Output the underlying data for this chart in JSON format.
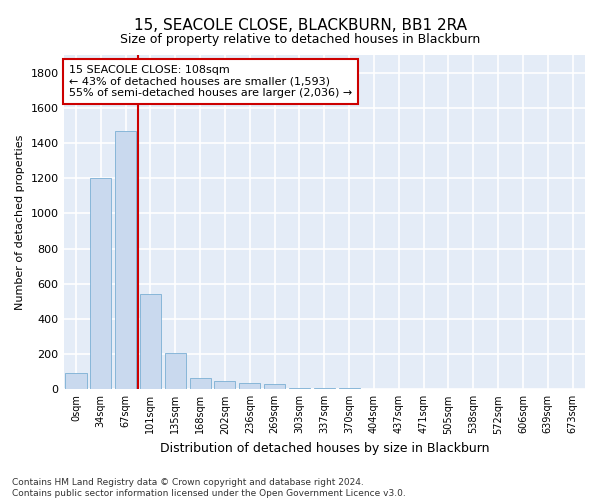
{
  "title": "15, SEACOLE CLOSE, BLACKBURN, BB1 2RA",
  "subtitle": "Size of property relative to detached houses in Blackburn",
  "xlabel": "Distribution of detached houses by size in Blackburn",
  "ylabel": "Number of detached properties",
  "bar_color": "#c9d9ee",
  "bar_edge_color": "#7bafd4",
  "background_color": "#e4ecf7",
  "grid_color": "#ffffff",
  "fig_background": "#ffffff",
  "categories": [
    "0sqm",
    "34sqm",
    "67sqm",
    "101sqm",
    "135sqm",
    "168sqm",
    "202sqm",
    "236sqm",
    "269sqm",
    "303sqm",
    "337sqm",
    "370sqm",
    "404sqm",
    "437sqm",
    "471sqm",
    "505sqm",
    "538sqm",
    "572sqm",
    "606sqm",
    "639sqm",
    "673sqm"
  ],
  "values": [
    90,
    1200,
    1470,
    540,
    205,
    65,
    45,
    35,
    28,
    10,
    8,
    5,
    3,
    2,
    2,
    1,
    1,
    0,
    0,
    0,
    0
  ],
  "ylim": [
    0,
    1900
  ],
  "yticks": [
    0,
    200,
    400,
    600,
    800,
    1000,
    1200,
    1400,
    1600,
    1800
  ],
  "vline_x_index": 3,
  "vline_color": "#cc0000",
  "annotation_line1": "15 SEACOLE CLOSE: 108sqm",
  "annotation_line2": "← 43% of detached houses are smaller (1,593)",
  "annotation_line3": "55% of semi-detached houses are larger (2,036) →",
  "annotation_box_color": "#ffffff",
  "annotation_box_edge": "#cc0000",
  "footnote_line1": "Contains HM Land Registry data © Crown copyright and database right 2024.",
  "footnote_line2": "Contains public sector information licensed under the Open Government Licence v3.0."
}
